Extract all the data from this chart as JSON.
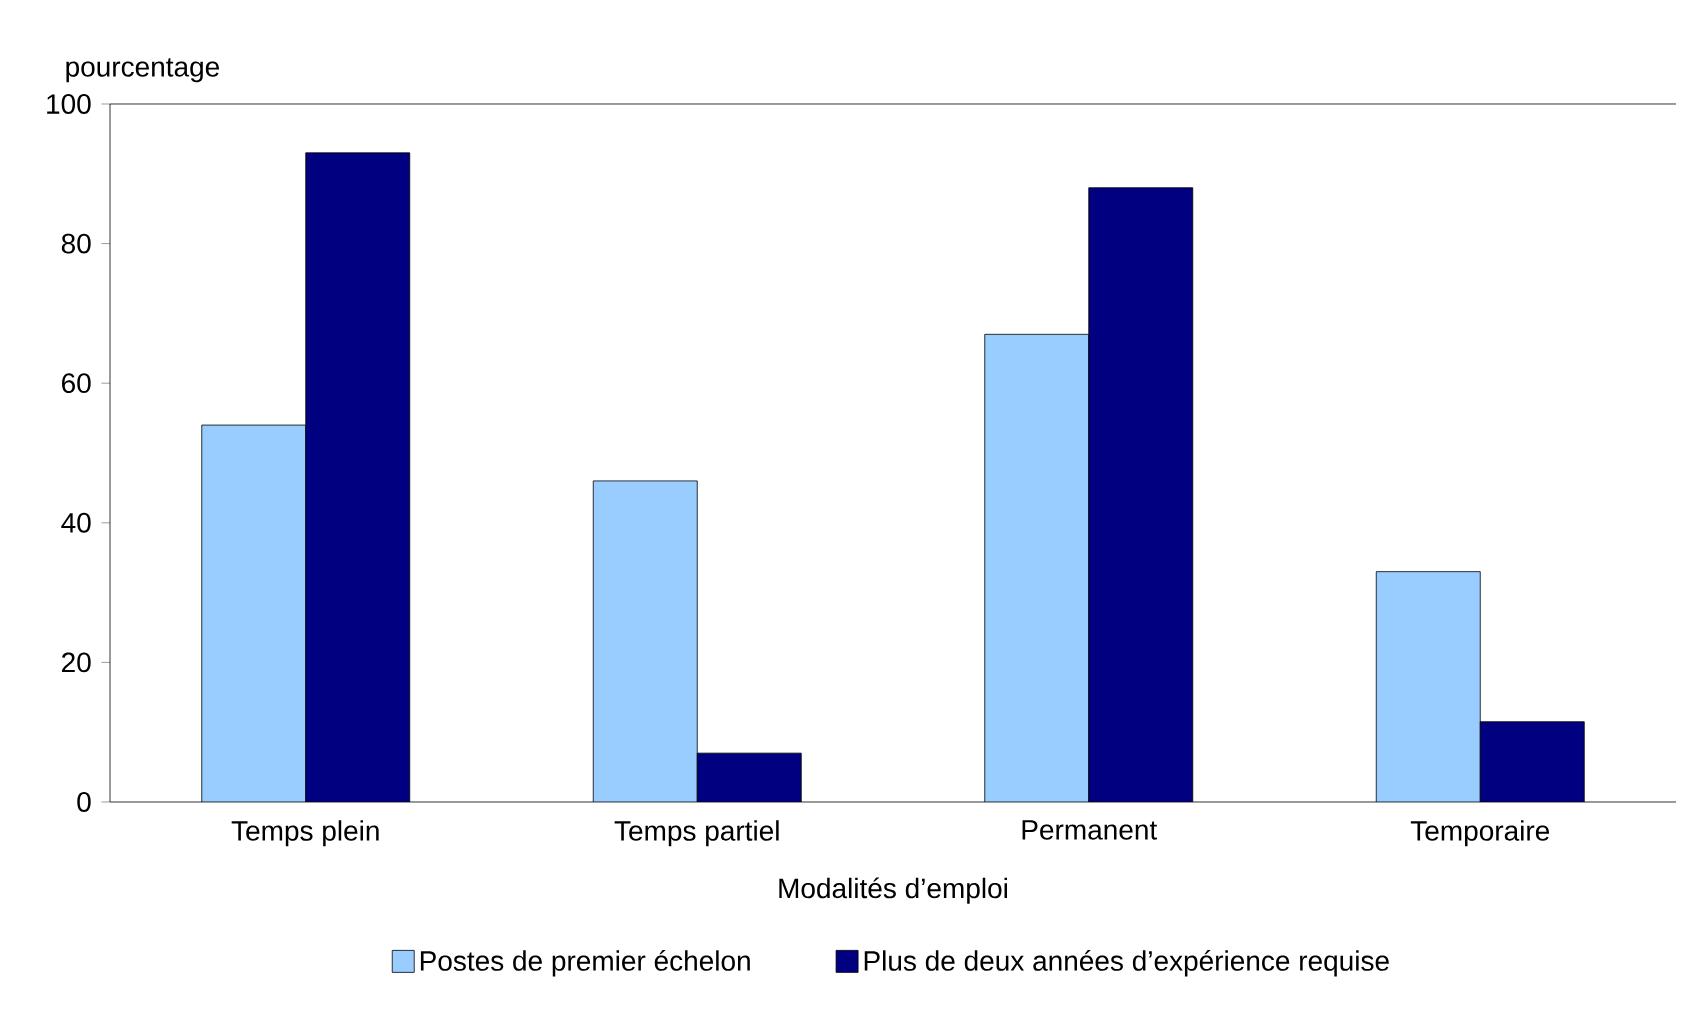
{
  "chart_data": {
    "type": "bar",
    "xlabel": "Modalités d’emploi",
    "ylabel": "pourcentage",
    "categories": [
      "Temps plein",
      "Temps partiel",
      "Permanent",
      "Temporaire"
    ],
    "series": [
      {
        "name": "Postes de premier échelon",
        "color": "#99ccff",
        "values": [
          54,
          46,
          67,
          33
        ]
      },
      {
        "name": "Plus de deux années d’expérience requise",
        "color": "#000080",
        "values": [
          93,
          7,
          88,
          11.5
        ]
      }
    ],
    "ylim": [
      0,
      100
    ],
    "yticks": [
      0,
      20,
      40,
      60,
      80,
      100
    ],
    "grid": false,
    "legend": "bottom"
  }
}
